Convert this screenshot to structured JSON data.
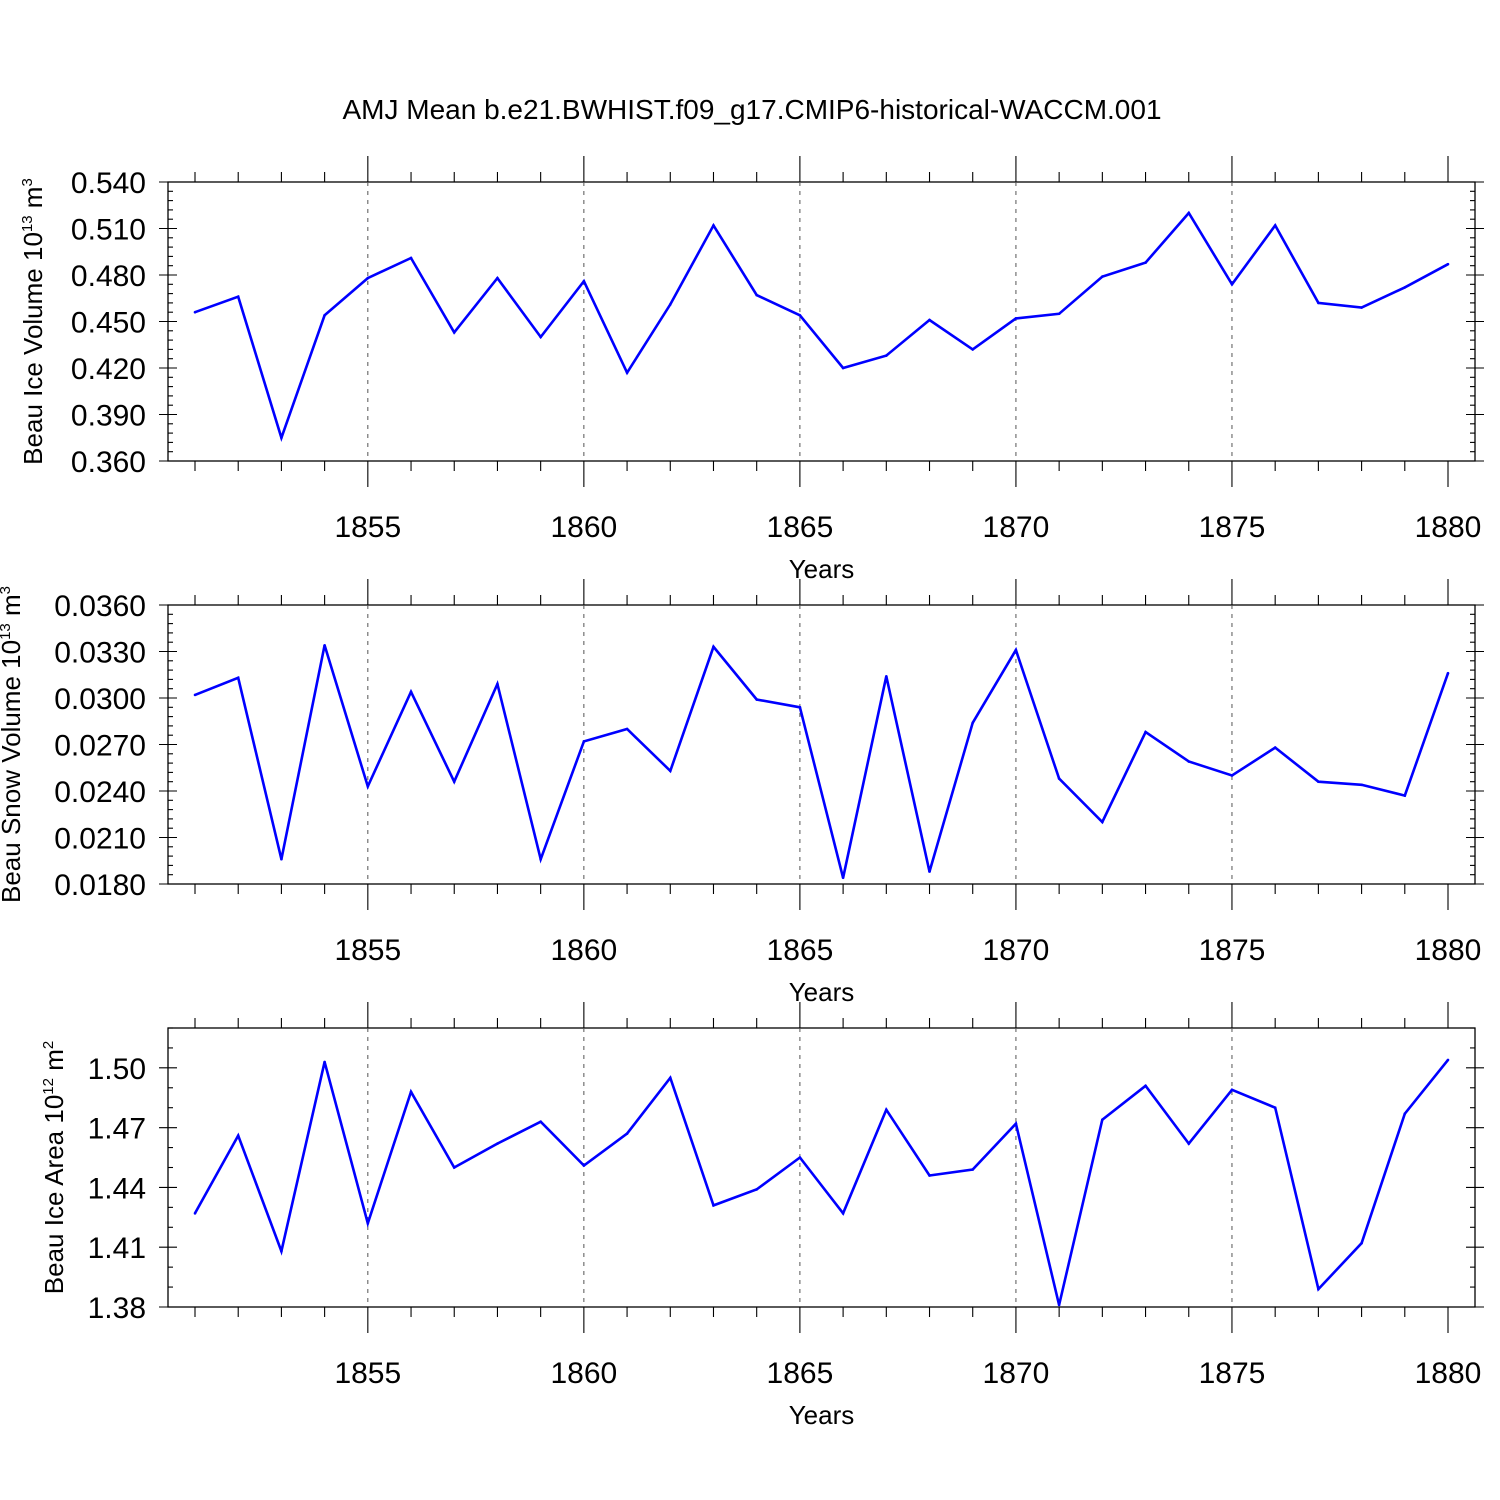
{
  "title": "AMJ Mean b.e21.BWHIST.f09_g17.CMIP6-historical-WACCM.001",
  "line_color": "#0000ff",
  "chart_data": [
    {
      "type": "line",
      "ylabel_main": "Beau Ice Volume 10",
      "ylabel_exp": "13",
      "ylabel_unit": "m",
      "ylabel_unit_exp": "3",
      "xlabel": "Years",
      "xlim": [
        1851,
        1880
      ],
      "ylim": [
        0.36,
        0.54
      ],
      "yticks": [
        0.36,
        0.39,
        0.42,
        0.45,
        0.48,
        0.51,
        0.54
      ],
      "ytick_labels": [
        "0.360",
        "0.390",
        "0.420",
        "0.450",
        "0.480",
        "0.510",
        "0.540"
      ],
      "yminor_step": 0.006,
      "xticks": [
        1855,
        1860,
        1865,
        1870,
        1875,
        1880
      ],
      "xtick_labels": [
        "1855",
        "1860",
        "1865",
        "1870",
        "1875",
        "1880"
      ],
      "grid_x": [
        1855,
        1860,
        1865,
        1870,
        1875
      ],
      "x": [
        1851,
        1852,
        1853,
        1854,
        1855,
        1856,
        1857,
        1858,
        1859,
        1860,
        1861,
        1862,
        1863,
        1864,
        1865,
        1866,
        1867,
        1868,
        1869,
        1870,
        1871,
        1872,
        1873,
        1874,
        1875,
        1876,
        1877,
        1878,
        1879,
        1880
      ],
      "y": [
        0.456,
        0.466,
        0.375,
        0.454,
        0.478,
        0.491,
        0.443,
        0.478,
        0.44,
        0.476,
        0.417,
        0.461,
        0.512,
        0.467,
        0.454,
        0.42,
        0.428,
        0.451,
        0.432,
        0.452,
        0.455,
        0.479,
        0.488,
        0.52,
        0.474,
        0.512,
        0.462,
        0.459,
        0.472,
        0.487
      ]
    },
    {
      "type": "line",
      "ylabel_main": "Beau Snow Volume 10",
      "ylabel_exp": "13",
      "ylabel_unit": "m",
      "ylabel_unit_exp": "3",
      "xlabel": "Years",
      "xlim": [
        1851,
        1880
      ],
      "ylim": [
        0.018,
        0.036
      ],
      "yticks": [
        0.018,
        0.021,
        0.024,
        0.027,
        0.03,
        0.033,
        0.036
      ],
      "ytick_labels": [
        "0.0180",
        "0.0210",
        "0.0240",
        "0.0270",
        "0.0300",
        "0.0330",
        "0.0360"
      ],
      "yminor_step": 0.0006,
      "xticks": [
        1855,
        1860,
        1865,
        1870,
        1875,
        1880
      ],
      "xtick_labels": [
        "1855",
        "1860",
        "1865",
        "1870",
        "1875",
        "1880"
      ],
      "grid_x": [
        1855,
        1860,
        1865,
        1870,
        1875
      ],
      "x": [
        1851,
        1852,
        1853,
        1854,
        1855,
        1856,
        1857,
        1858,
        1859,
        1860,
        1861,
        1862,
        1863,
        1864,
        1865,
        1866,
        1867,
        1868,
        1869,
        1870,
        1871,
        1872,
        1873,
        1874,
        1875,
        1876,
        1877,
        1878,
        1879,
        1880
      ],
      "y": [
        0.0302,
        0.0313,
        0.0196,
        0.0334,
        0.0243,
        0.0304,
        0.0246,
        0.0309,
        0.0196,
        0.0272,
        0.028,
        0.0253,
        0.0333,
        0.0299,
        0.0294,
        0.0184,
        0.0314,
        0.0188,
        0.0284,
        0.0331,
        0.0248,
        0.022,
        0.0278,
        0.0259,
        0.025,
        0.0268,
        0.0246,
        0.0244,
        0.0237,
        0.0316
      ]
    },
    {
      "type": "line",
      "ylabel_main": "Beau Ice Area 10",
      "ylabel_exp": "12",
      "ylabel_unit": "m",
      "ylabel_unit_exp": "2",
      "xlabel": "Years",
      "xlim": [
        1851,
        1880
      ],
      "ylim": [
        1.38,
        1.52
      ],
      "yticks": [
        1.38,
        1.41,
        1.44,
        1.47,
        1.5
      ],
      "ytick_labels": [
        "1.38",
        "1.41",
        "1.44",
        "1.47",
        "1.50"
      ],
      "yminor_step": 0.01,
      "xticks": [
        1855,
        1860,
        1865,
        1870,
        1875,
        1880
      ],
      "xtick_labels": [
        "1855",
        "1860",
        "1865",
        "1870",
        "1875",
        "1880"
      ],
      "grid_x": [
        1855,
        1860,
        1865,
        1870,
        1875
      ],
      "x": [
        1851,
        1852,
        1853,
        1854,
        1855,
        1856,
        1857,
        1858,
        1859,
        1860,
        1861,
        1862,
        1863,
        1864,
        1865,
        1866,
        1867,
        1868,
        1869,
        1870,
        1871,
        1872,
        1873,
        1874,
        1875,
        1876,
        1877,
        1878,
        1879,
        1880
      ],
      "y": [
        1.427,
        1.466,
        1.408,
        1.503,
        1.422,
        1.488,
        1.45,
        1.462,
        1.473,
        1.451,
        1.467,
        1.495,
        1.431,
        1.439,
        1.455,
        1.427,
        1.479,
        1.446,
        1.449,
        1.472,
        1.381,
        1.474,
        1.491,
        1.462,
        1.489,
        1.48,
        1.389,
        1.412,
        1.477,
        1.504
      ]
    }
  ]
}
